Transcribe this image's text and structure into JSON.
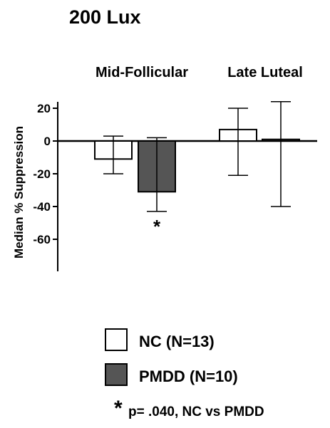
{
  "chart_data": {
    "type": "bar",
    "title": "200 Lux",
    "ylabel": "Median % Suppression",
    "xlabel": "",
    "ylim": [
      -70,
      25
    ],
    "yticks": [
      20,
      0,
      -20,
      -40,
      -60
    ],
    "grid": false,
    "groups": [
      "Mid-Follicular",
      "Late Luteal"
    ],
    "series": [
      {
        "name": "NC (N=13)",
        "color": "#ffffff",
        "values": [
          -11,
          7
        ],
        "error_low": [
          -20,
          -21
        ],
        "error_high": [
          3,
          20
        ]
      },
      {
        "name": "PMDD (N=10)",
        "color": "#555555",
        "values": [
          -31,
          1
        ],
        "error_low": [
          -43,
          -40
        ],
        "error_high": [
          2,
          24
        ]
      }
    ],
    "annotations": [
      {
        "group": "Mid-Follicular",
        "series": "PMDD (N=10)",
        "text": "*"
      }
    ],
    "legend_placement": "bottom-center",
    "footnote": {
      "marker": "*",
      "text": "p= .040, NC vs PMDD"
    }
  }
}
